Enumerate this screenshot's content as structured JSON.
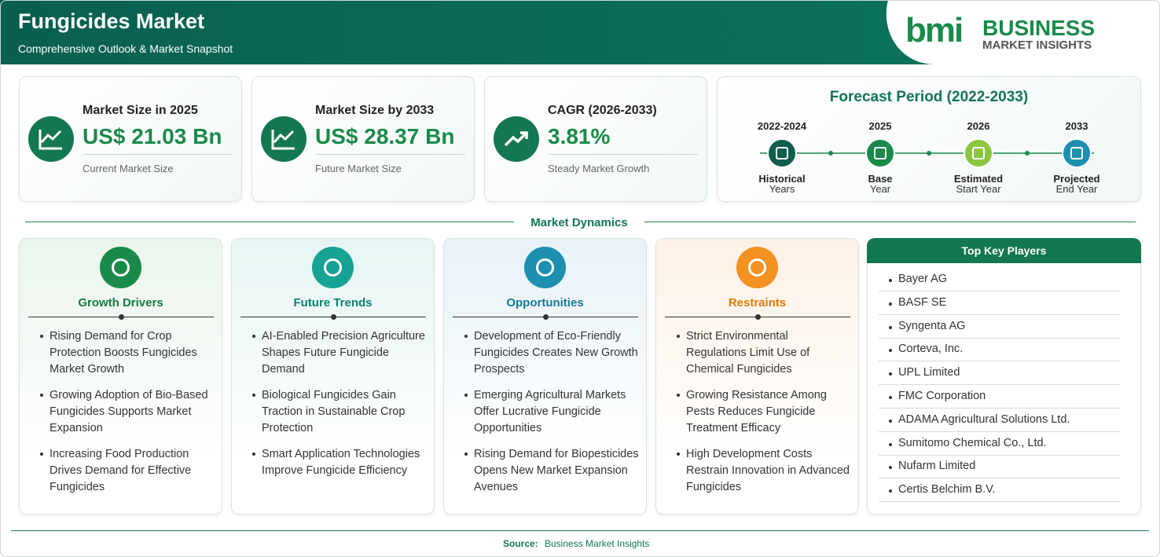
{
  "header": {
    "title": "Fungicides Market",
    "subtitle": "Comprehensive Outlook & Market Snapshot",
    "logo": {
      "mark": "bmi",
      "brand": "BUSINESS",
      "tagline": "MARKET INSIGHTS"
    }
  },
  "stats": [
    {
      "label": "Market Size in 2025",
      "value": "US$ 21.03 Bn",
      "note": "Current Market Size"
    },
    {
      "label": "Market Size by 2033",
      "value": "US$ 28.37 Bn",
      "note": "Future Market Size"
    },
    {
      "label": "CAGR (2026-2033)",
      "value": "3.81%",
      "note": "Steady Market Growth"
    }
  ],
  "forecast": {
    "title": "Forecast Period (2022-2033)",
    "steps": [
      {
        "period": "2022-2024",
        "label": "Historical",
        "sublabel": "Years"
      },
      {
        "period": "2025",
        "label": "Base",
        "sublabel": "Year"
      },
      {
        "period": "2026",
        "label": "Estimated",
        "sublabel": "Start Year"
      },
      {
        "period": "2033",
        "label": "Projected",
        "sublabel": "End Year"
      }
    ]
  },
  "dynamics": {
    "title": "Market Dynamics",
    "cards": [
      {
        "title": "Growth Drivers",
        "items": [
          "Rising Demand for Crop Protection Boosts Fungicides Market Growth",
          "Growing Adoption of Bio-Based Fungicides Supports Market Expansion",
          "Increasing Food Production Drives Demand for Effective Fungicides"
        ]
      },
      {
        "title": "Future Trends",
        "items": [
          "AI-Enabled Precision Agriculture Shapes Future Fungicide Demand",
          "Biological Fungicides Gain Traction in Sustainable Crop Protection",
          "Smart Application Technologies Improve Fungicide Efficiency"
        ]
      },
      {
        "title": "Opportunities",
        "items": [
          "Development of Eco-Friendly Fungicides Creates New Growth Prospects",
          "Emerging Agricultural Markets Offer Lucrative Fungicide Opportunities",
          "Rising Demand for Biopesticides Opens New Market Expansion Avenues"
        ]
      },
      {
        "title": "Restraints",
        "items": [
          "Strict Environmental Regulations Limit Use of Chemical Fungicides",
          "Growing Resistance Among Pests Reduces Fungicide Treatment Efficacy",
          "High Development Costs Restrain Innovation in Advanced Fungicides"
        ]
      }
    ]
  },
  "players": {
    "title": "Top Key Players",
    "items": [
      "Bayer AG",
      "BASF SE",
      "Syngenta AG",
      "Corteva, Inc.",
      "UPL Limited",
      "FMC Corporation",
      "ADAMA Agricultural Solutions Ltd.",
      "Sumitomo Chemical Co., Ltd.",
      "Nufarm Limited",
      "Certis Belchim B.V."
    ]
  },
  "footer": {
    "source_label": "Source:",
    "source": "Business Market Insights"
  }
}
